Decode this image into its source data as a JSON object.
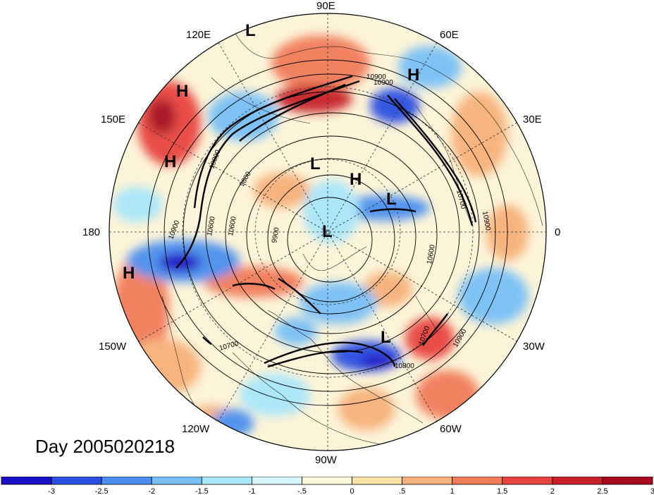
{
  "title": "Day 2005020218",
  "longitude_labels": [
    {
      "text": "90E",
      "lon": 90
    },
    {
      "text": "60E",
      "lon": 60
    },
    {
      "text": "30E",
      "lon": 30
    },
    {
      "text": "0",
      "lon": 0
    },
    {
      "text": "30W",
      "lon": -30
    },
    {
      "text": "60W",
      "lon": -60
    },
    {
      "text": "90W",
      "lon": -90
    },
    {
      "text": "120W",
      "lon": -120
    },
    {
      "text": "150W",
      "lon": -150
    },
    {
      "text": "180",
      "lon": 180
    },
    {
      "text": "150E",
      "lon": 150
    },
    {
      "text": "120E",
      "lon": 120
    }
  ],
  "pressure_centers": [
    {
      "label": "L",
      "name": "low-center"
    },
    {
      "label": "H",
      "name": "high-center"
    },
    {
      "label": "H",
      "name": "high-center"
    },
    {
      "label": "H",
      "name": "high-center"
    },
    {
      "label": "L",
      "name": "low-center"
    },
    {
      "label": "H",
      "name": "high-center"
    },
    {
      "label": "L",
      "name": "low-center"
    },
    {
      "label": "L",
      "name": "low-center"
    },
    {
      "label": "H",
      "name": "high-center"
    },
    {
      "label": "L",
      "name": "low-center"
    }
  ],
  "contour_labels": [
    "10900",
    "10900",
    "10900",
    "10800",
    "10700",
    "10600",
    "10900",
    "10700",
    "10800",
    "10900",
    "10600",
    "10700",
    "9900",
    "9800",
    "10600"
  ],
  "colorbar": {
    "colors": [
      "#1a10c8",
      "#2a4fe3",
      "#4a8ff0",
      "#78bff7",
      "#a8e6fb",
      "#d5f6fc",
      "#fcf9dc",
      "#fbe3a8",
      "#f7b07a",
      "#f07c5a",
      "#e8443f",
      "#c8202a",
      "#a80820"
    ],
    "labels": [
      "-3",
      "-2.5",
      "-2",
      "-1.5",
      "-1",
      "-.5",
      "0",
      ".5",
      "1",
      "1.5",
      "2",
      "2.5",
      "3"
    ]
  }
}
